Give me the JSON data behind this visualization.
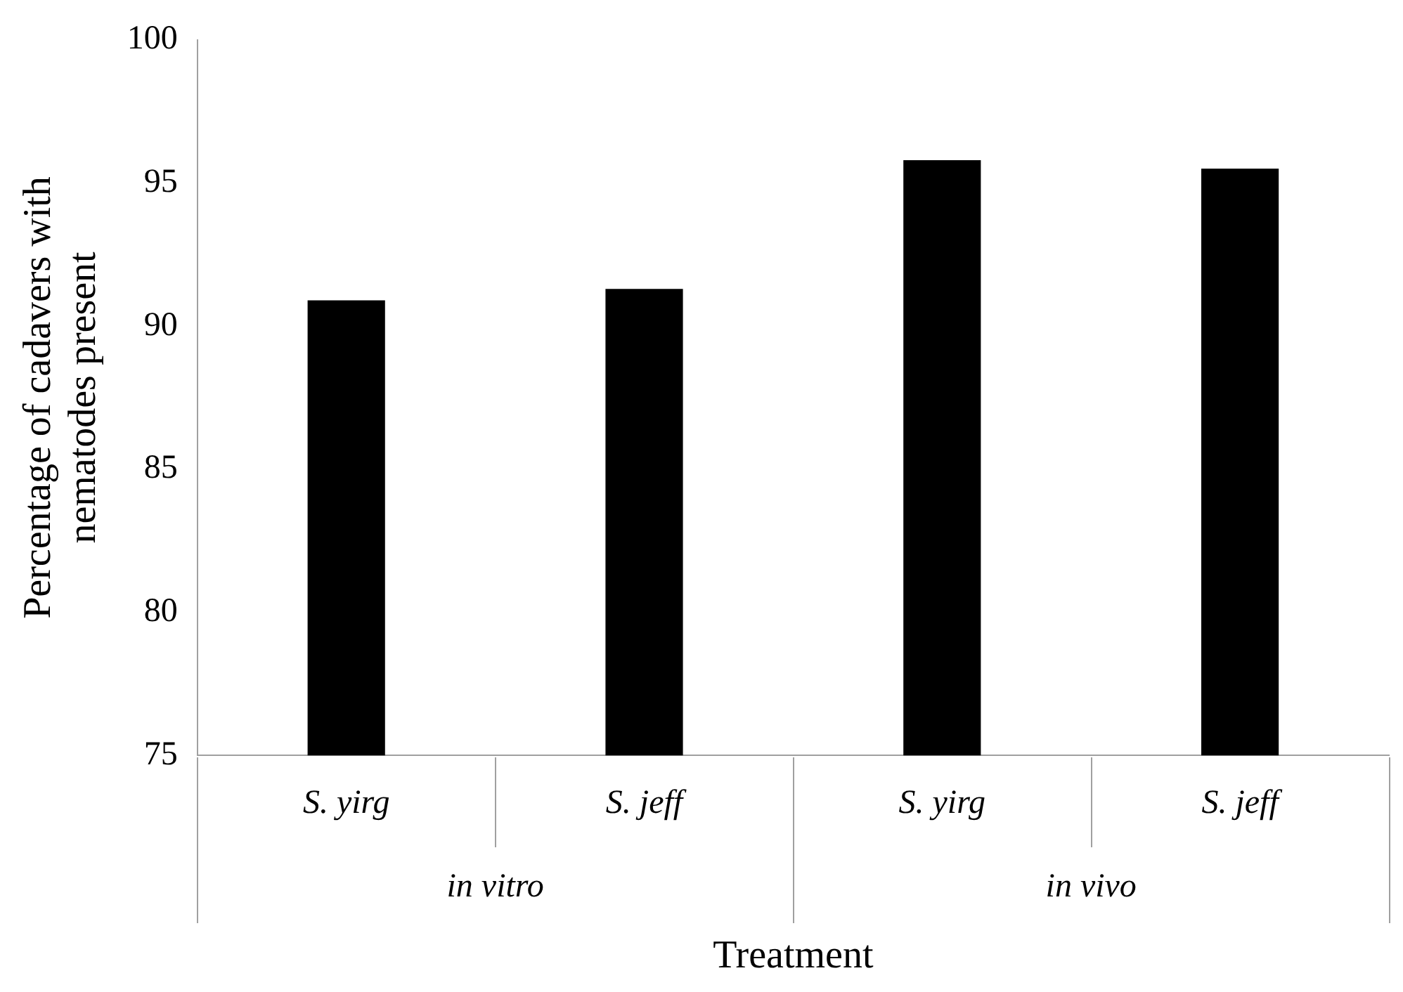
{
  "chart_data": {
    "type": "bar",
    "xlabel": "Treatment",
    "ylabel": "Percentage of cadavers with nematodes present",
    "categories": [
      "S. yirg",
      "S. jeff",
      "S. yirg",
      "S. jeff"
    ],
    "values": [
      90.9,
      91.3,
      95.8,
      95.5
    ],
    "color": "#000000",
    "ylim": [
      75,
      100
    ],
    "yticks": [
      75,
      80,
      85,
      90,
      95,
      100
    ],
    "grid": false,
    "legend": false,
    "annotations": [
      "in vitro",
      "in vivo"
    ]
  }
}
